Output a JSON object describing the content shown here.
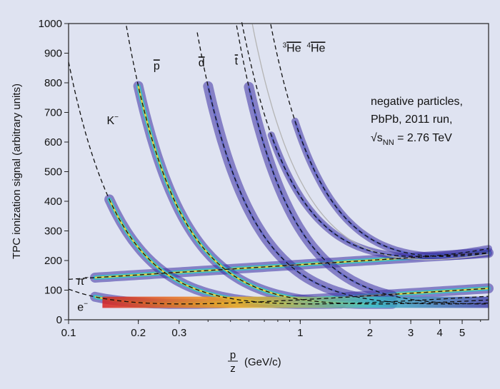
{
  "chart_data": {
    "type": "scatter",
    "title": "",
    "xlabel_num": "p",
    "xlabel_den": "z",
    "xlabel_unit": "(GeV/c)",
    "ylabel": "TPC ionization signal (arbitrary units)",
    "xscale": "log",
    "xlim": [
      0.1,
      6.5
    ],
    "ylim": [
      0,
      1000
    ],
    "x_ticks": [
      {
        "value": 0.1,
        "label": "0.1"
      },
      {
        "value": 0.2,
        "label": "0.2"
      },
      {
        "value": 0.3,
        "label": "0.3"
      },
      {
        "value": 1,
        "label": "1"
      },
      {
        "value": 2,
        "label": "2"
      },
      {
        "value": 3,
        "label": "3"
      },
      {
        "value": 4,
        "label": "4"
      },
      {
        "value": 5,
        "label": "5"
      }
    ],
    "y_ticks": [
      {
        "value": 0,
        "label": "0"
      },
      {
        "value": 100,
        "label": "100"
      },
      {
        "value": 200,
        "label": "200"
      },
      {
        "value": 300,
        "label": "300"
      },
      {
        "value": 400,
        "label": "400"
      },
      {
        "value": 500,
        "label": "500"
      },
      {
        "value": 600,
        "label": "600"
      },
      {
        "value": 700,
        "label": "700"
      },
      {
        "value": 800,
        "label": "800"
      },
      {
        "value": 900,
        "label": "900"
      },
      {
        "value": 1000,
        "label": "1000"
      }
    ],
    "grid": false,
    "species": [
      {
        "label": "π",
        "sup": "−",
        "mass": 0.1396,
        "charge": 1,
        "band_xmin": 0.13,
        "band_xmax": 6.5,
        "color": "#2a1f8f"
      },
      {
        "label": "e",
        "sup": "−",
        "mass": 0.000511,
        "charge": 1,
        "band_xmin": 0.13,
        "band_xmax": 6.5,
        "color": "#2a1f8f"
      },
      {
        "label": "K",
        "sup": "−",
        "mass": 0.4937,
        "charge": 1,
        "band_xmin": 0.15,
        "band_xmax": 1.5,
        "color": "#2a1f8f"
      },
      {
        "label": "p",
        "overline": true,
        "mass": 0.9383,
        "charge": 1,
        "band_xmin": 0.2,
        "band_xmax": 2.5,
        "color": "#2a1f8f"
      },
      {
        "label": "d",
        "overline": true,
        "mass": 1.8756,
        "charge": 1,
        "band_xmin": 0.4,
        "band_xmax": 2.5,
        "color": "#2a1f8f"
      },
      {
        "label": "t",
        "overline": true,
        "mass": 2.8089,
        "charge": 1,
        "band_xmin": 0.6,
        "band_xmax": 2.5,
        "color": "#2a1f8f"
      },
      {
        "label": "He",
        "pre": "3",
        "overline": true,
        "mass": 2.8084,
        "charge": 2,
        "band_xmin": 0.75,
        "band_xmax": 6.5,
        "color": "#2a1f8f"
      },
      {
        "label": "He",
        "pre": "4",
        "overline": true,
        "mass": 3.7274,
        "charge": 2,
        "band_xmin": 0.95,
        "band_xmax": 6.5,
        "color": "#2a1f8f"
      }
    ],
    "reference_curve": {
      "description": "",
      "color": "#b4b4b4",
      "mass": 3.2,
      "charge": 2,
      "plateau": 170
    },
    "annotation": {
      "line1": "negative particles,",
      "line2": "PbPb, 2011 run,",
      "line3_prefix": "√s",
      "line3_sub": "NN",
      "line3_suffix": " = 2.76 TeV"
    },
    "colors": {
      "plot_bg": "#dfe3f1",
      "frame": "#222222",
      "dashed": "#111111"
    }
  }
}
